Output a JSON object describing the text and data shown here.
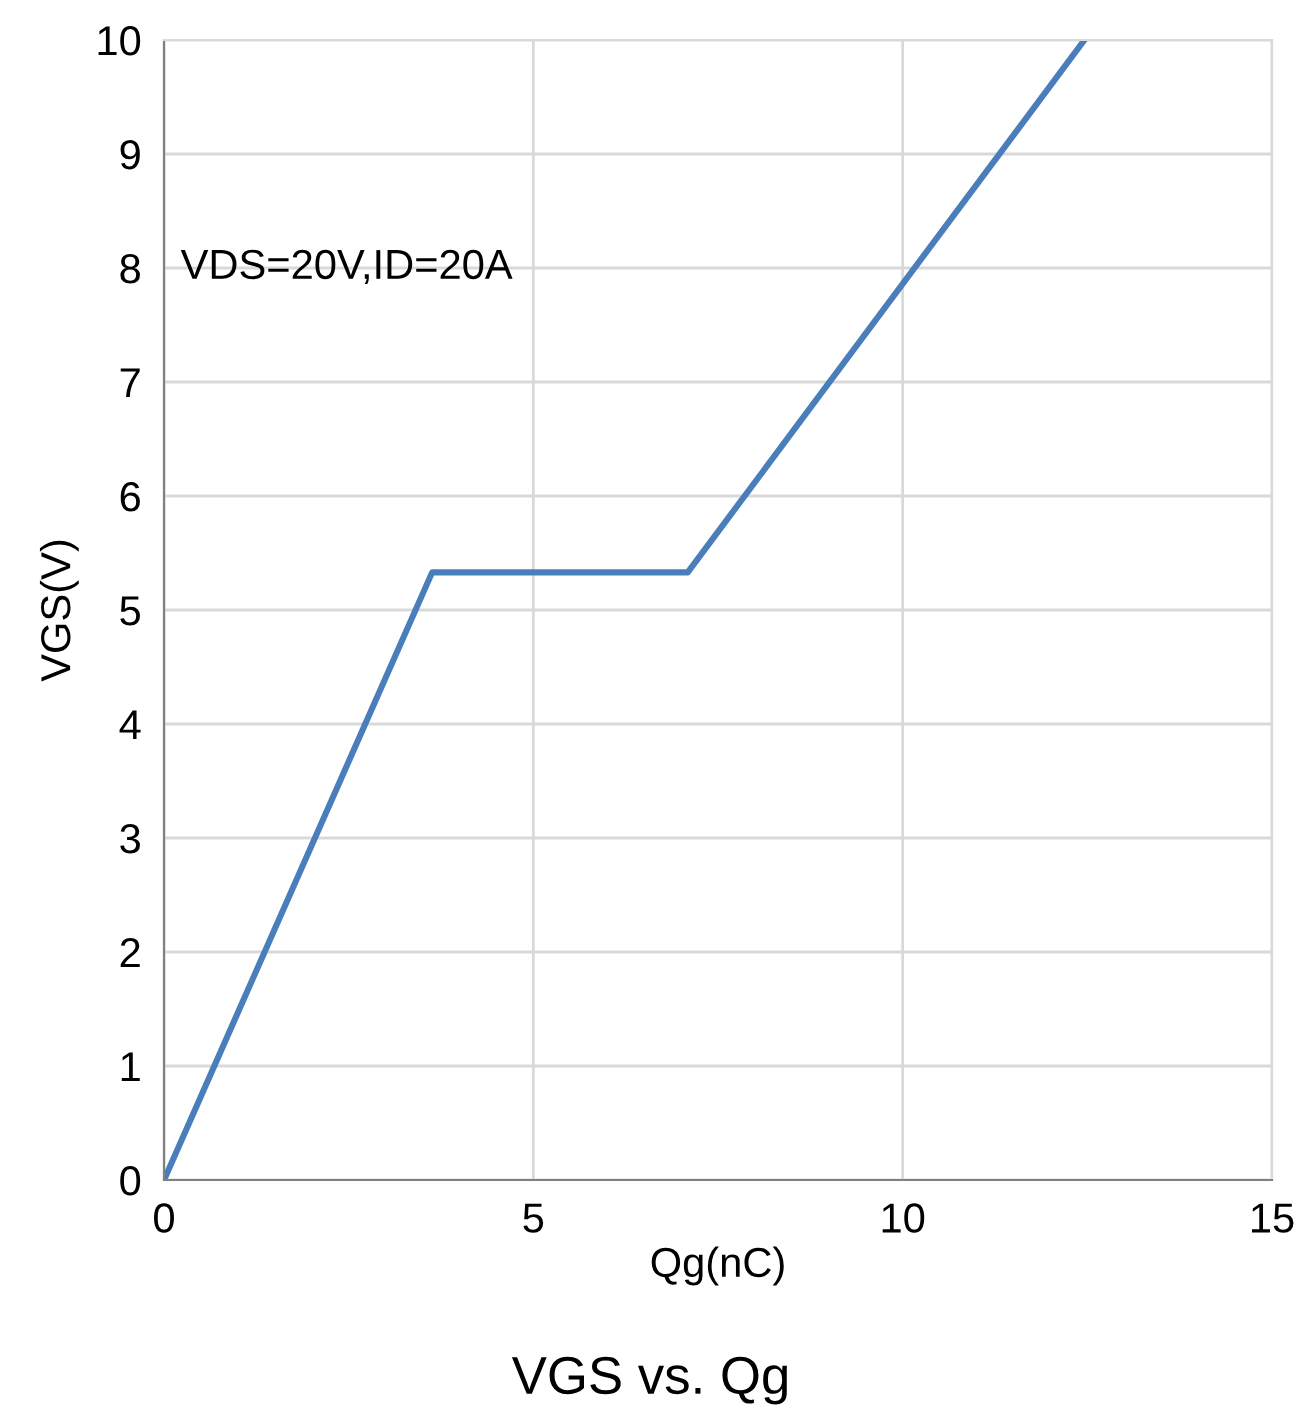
{
  "chart_data": {
    "type": "line",
    "title": "VGS vs. Qg",
    "xlabel": "Qg(nC)",
    "ylabel": "VGS(V)",
    "annotations": [
      "VDS=20V,ID=20A"
    ],
    "x": [
      0,
      3.63,
      7.09,
      12.46
    ],
    "series": [
      {
        "color": "#4a7ebb",
        "values": [
          0,
          5.33,
          5.33,
          10
        ]
      }
    ],
    "xlim": [
      0,
      15
    ],
    "ylim": [
      0,
      10
    ],
    "xticks": [
      0,
      5,
      10,
      15
    ],
    "yticks": [
      0,
      1,
      2,
      3,
      4,
      5,
      6,
      7,
      8,
      9,
      10
    ],
    "grid": true,
    "marker": "none",
    "line_style": "solid",
    "legend": false
  }
}
